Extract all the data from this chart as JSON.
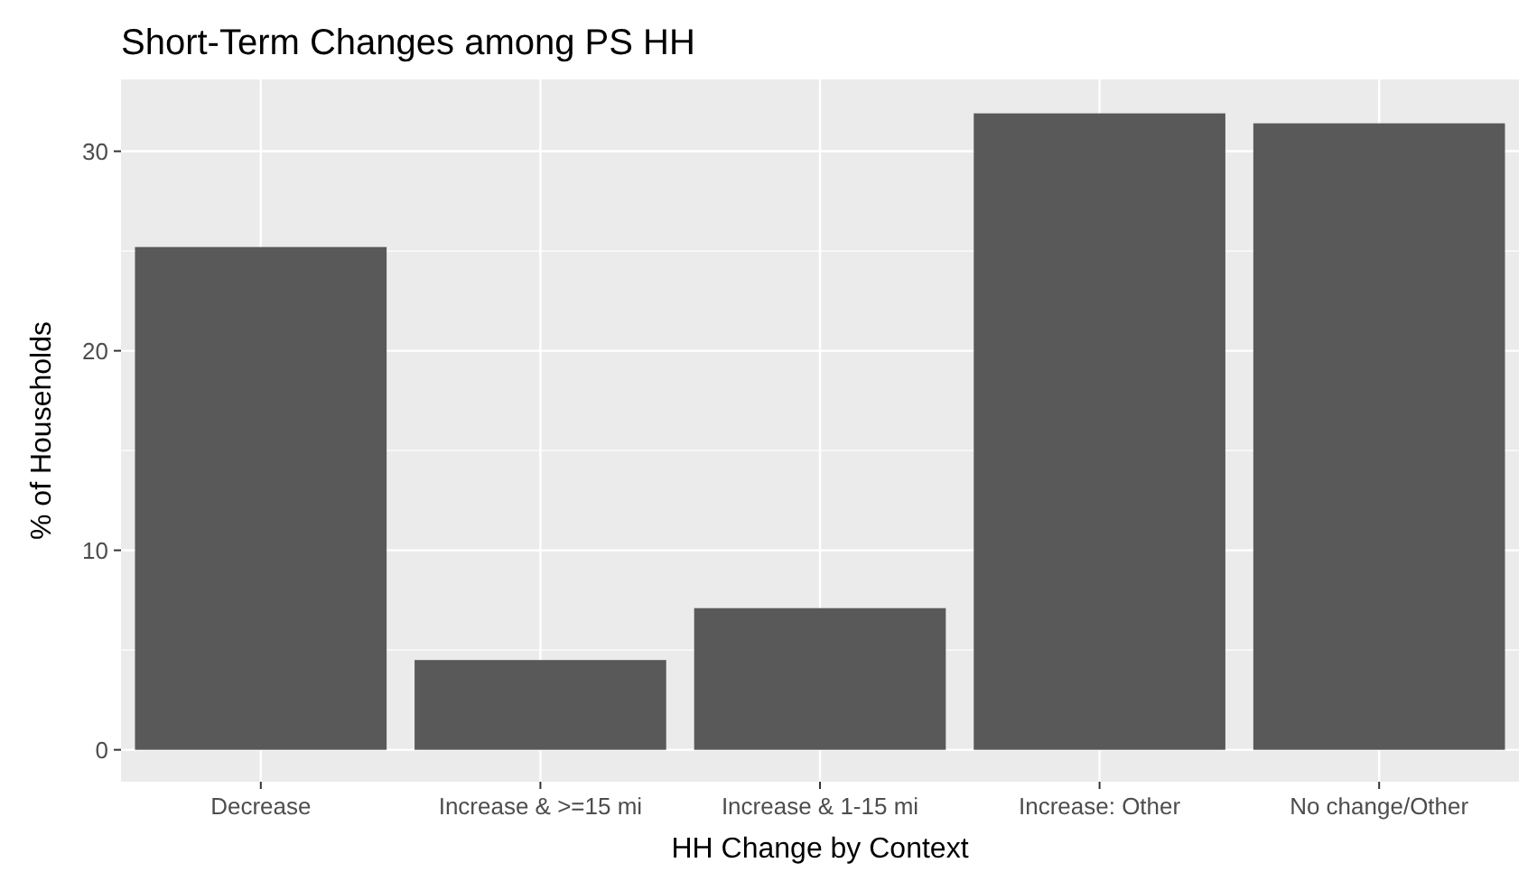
{
  "chart_data": {
    "type": "bar",
    "title": "Short-Term Changes among PS HH",
    "xlabel": "HH Change by Context",
    "ylabel": "% of Households",
    "categories": [
      "Decrease",
      "Increase & >=15 mi",
      "Increase & 1-15 mi",
      "Increase: Other",
      "No change/Other"
    ],
    "values": [
      25.2,
      4.5,
      7.1,
      31.9,
      31.4
    ],
    "color": "#595959",
    "ylim": [
      -1.6,
      33.6
    ],
    "yticks": [
      0,
      10,
      20,
      30
    ],
    "grid": true
  }
}
